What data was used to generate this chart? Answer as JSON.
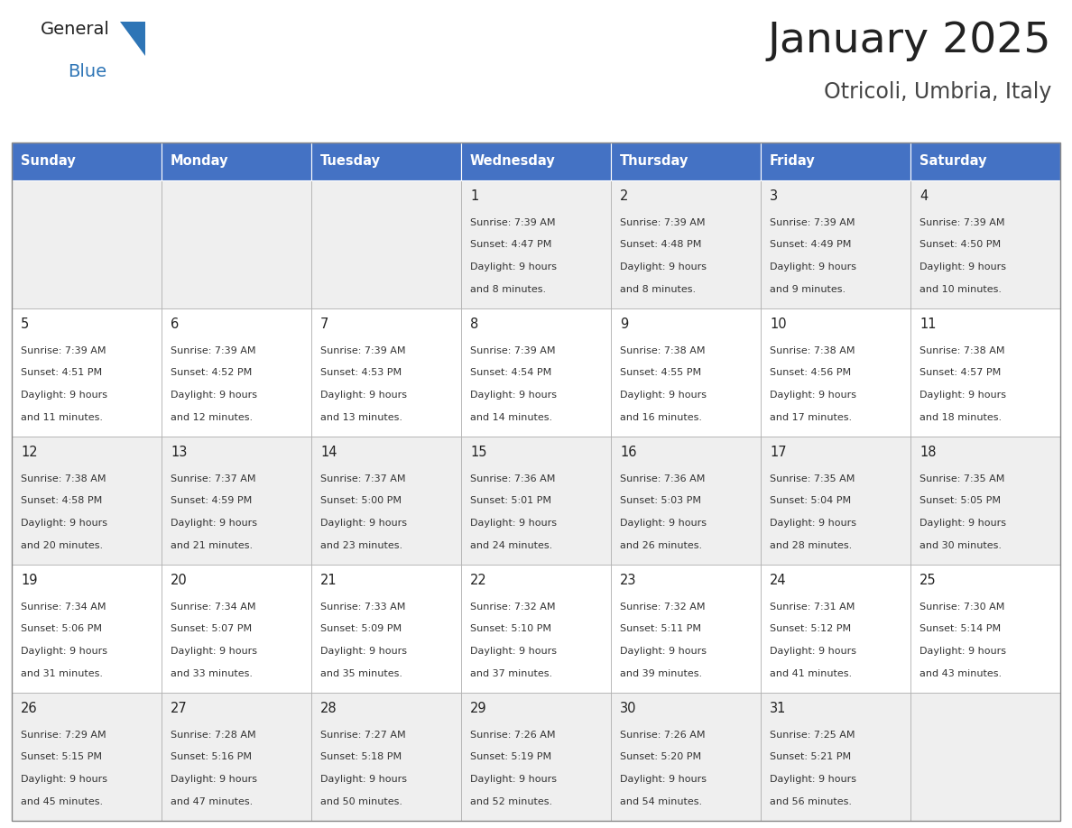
{
  "title": "January 2025",
  "subtitle": "Otricoli, Umbria, Italy",
  "days_of_week": [
    "Sunday",
    "Monday",
    "Tuesday",
    "Wednesday",
    "Thursday",
    "Friday",
    "Saturday"
  ],
  "header_bg": "#4472C4",
  "header_text": "#FFFFFF",
  "cell_bg_light": "#EFEFEF",
  "cell_bg_white": "#FFFFFF",
  "cell_border": "#AAAAAA",
  "day_number_color": "#222222",
  "text_color": "#333333",
  "title_color": "#222222",
  "subtitle_color": "#444444",
  "logo_general_color": "#222222",
  "logo_blue_color": "#2E75B6",
  "weeks": [
    {
      "days": [
        {
          "day": null,
          "sunrise": null,
          "sunset": null,
          "daylight_line1": null,
          "daylight_line2": null
        },
        {
          "day": null,
          "sunrise": null,
          "sunset": null,
          "daylight_line1": null,
          "daylight_line2": null
        },
        {
          "day": null,
          "sunrise": null,
          "sunset": null,
          "daylight_line1": null,
          "daylight_line2": null
        },
        {
          "day": "1",
          "sunrise": "Sunrise: 7:39 AM",
          "sunset": "Sunset: 4:47 PM",
          "daylight_line1": "Daylight: 9 hours",
          "daylight_line2": "and 8 minutes."
        },
        {
          "day": "2",
          "sunrise": "Sunrise: 7:39 AM",
          "sunset": "Sunset: 4:48 PM",
          "daylight_line1": "Daylight: 9 hours",
          "daylight_line2": "and 8 minutes."
        },
        {
          "day": "3",
          "sunrise": "Sunrise: 7:39 AM",
          "sunset": "Sunset: 4:49 PM",
          "daylight_line1": "Daylight: 9 hours",
          "daylight_line2": "and 9 minutes."
        },
        {
          "day": "4",
          "sunrise": "Sunrise: 7:39 AM",
          "sunset": "Sunset: 4:50 PM",
          "daylight_line1": "Daylight: 9 hours",
          "daylight_line2": "and 10 minutes."
        }
      ]
    },
    {
      "days": [
        {
          "day": "5",
          "sunrise": "Sunrise: 7:39 AM",
          "sunset": "Sunset: 4:51 PM",
          "daylight_line1": "Daylight: 9 hours",
          "daylight_line2": "and 11 minutes."
        },
        {
          "day": "6",
          "sunrise": "Sunrise: 7:39 AM",
          "sunset": "Sunset: 4:52 PM",
          "daylight_line1": "Daylight: 9 hours",
          "daylight_line2": "and 12 minutes."
        },
        {
          "day": "7",
          "sunrise": "Sunrise: 7:39 AM",
          "sunset": "Sunset: 4:53 PM",
          "daylight_line1": "Daylight: 9 hours",
          "daylight_line2": "and 13 minutes."
        },
        {
          "day": "8",
          "sunrise": "Sunrise: 7:39 AM",
          "sunset": "Sunset: 4:54 PM",
          "daylight_line1": "Daylight: 9 hours",
          "daylight_line2": "and 14 minutes."
        },
        {
          "day": "9",
          "sunrise": "Sunrise: 7:38 AM",
          "sunset": "Sunset: 4:55 PM",
          "daylight_line1": "Daylight: 9 hours",
          "daylight_line2": "and 16 minutes."
        },
        {
          "day": "10",
          "sunrise": "Sunrise: 7:38 AM",
          "sunset": "Sunset: 4:56 PM",
          "daylight_line1": "Daylight: 9 hours",
          "daylight_line2": "and 17 minutes."
        },
        {
          "day": "11",
          "sunrise": "Sunrise: 7:38 AM",
          "sunset": "Sunset: 4:57 PM",
          "daylight_line1": "Daylight: 9 hours",
          "daylight_line2": "and 18 minutes."
        }
      ]
    },
    {
      "days": [
        {
          "day": "12",
          "sunrise": "Sunrise: 7:38 AM",
          "sunset": "Sunset: 4:58 PM",
          "daylight_line1": "Daylight: 9 hours",
          "daylight_line2": "and 20 minutes."
        },
        {
          "day": "13",
          "sunrise": "Sunrise: 7:37 AM",
          "sunset": "Sunset: 4:59 PM",
          "daylight_line1": "Daylight: 9 hours",
          "daylight_line2": "and 21 minutes."
        },
        {
          "day": "14",
          "sunrise": "Sunrise: 7:37 AM",
          "sunset": "Sunset: 5:00 PM",
          "daylight_line1": "Daylight: 9 hours",
          "daylight_line2": "and 23 minutes."
        },
        {
          "day": "15",
          "sunrise": "Sunrise: 7:36 AM",
          "sunset": "Sunset: 5:01 PM",
          "daylight_line1": "Daylight: 9 hours",
          "daylight_line2": "and 24 minutes."
        },
        {
          "day": "16",
          "sunrise": "Sunrise: 7:36 AM",
          "sunset": "Sunset: 5:03 PM",
          "daylight_line1": "Daylight: 9 hours",
          "daylight_line2": "and 26 minutes."
        },
        {
          "day": "17",
          "sunrise": "Sunrise: 7:35 AM",
          "sunset": "Sunset: 5:04 PM",
          "daylight_line1": "Daylight: 9 hours",
          "daylight_line2": "and 28 minutes."
        },
        {
          "day": "18",
          "sunrise": "Sunrise: 7:35 AM",
          "sunset": "Sunset: 5:05 PM",
          "daylight_line1": "Daylight: 9 hours",
          "daylight_line2": "and 30 minutes."
        }
      ]
    },
    {
      "days": [
        {
          "day": "19",
          "sunrise": "Sunrise: 7:34 AM",
          "sunset": "Sunset: 5:06 PM",
          "daylight_line1": "Daylight: 9 hours",
          "daylight_line2": "and 31 minutes."
        },
        {
          "day": "20",
          "sunrise": "Sunrise: 7:34 AM",
          "sunset": "Sunset: 5:07 PM",
          "daylight_line1": "Daylight: 9 hours",
          "daylight_line2": "and 33 minutes."
        },
        {
          "day": "21",
          "sunrise": "Sunrise: 7:33 AM",
          "sunset": "Sunset: 5:09 PM",
          "daylight_line1": "Daylight: 9 hours",
          "daylight_line2": "and 35 minutes."
        },
        {
          "day": "22",
          "sunrise": "Sunrise: 7:32 AM",
          "sunset": "Sunset: 5:10 PM",
          "daylight_line1": "Daylight: 9 hours",
          "daylight_line2": "and 37 minutes."
        },
        {
          "day": "23",
          "sunrise": "Sunrise: 7:32 AM",
          "sunset": "Sunset: 5:11 PM",
          "daylight_line1": "Daylight: 9 hours",
          "daylight_line2": "and 39 minutes."
        },
        {
          "day": "24",
          "sunrise": "Sunrise: 7:31 AM",
          "sunset": "Sunset: 5:12 PM",
          "daylight_line1": "Daylight: 9 hours",
          "daylight_line2": "and 41 minutes."
        },
        {
          "day": "25",
          "sunrise": "Sunrise: 7:30 AM",
          "sunset": "Sunset: 5:14 PM",
          "daylight_line1": "Daylight: 9 hours",
          "daylight_line2": "and 43 minutes."
        }
      ]
    },
    {
      "days": [
        {
          "day": "26",
          "sunrise": "Sunrise: 7:29 AM",
          "sunset": "Sunset: 5:15 PM",
          "daylight_line1": "Daylight: 9 hours",
          "daylight_line2": "and 45 minutes."
        },
        {
          "day": "27",
          "sunrise": "Sunrise: 7:28 AM",
          "sunset": "Sunset: 5:16 PM",
          "daylight_line1": "Daylight: 9 hours",
          "daylight_line2": "and 47 minutes."
        },
        {
          "day": "28",
          "sunrise": "Sunrise: 7:27 AM",
          "sunset": "Sunset: 5:18 PM",
          "daylight_line1": "Daylight: 9 hours",
          "daylight_line2": "and 50 minutes."
        },
        {
          "day": "29",
          "sunrise": "Sunrise: 7:26 AM",
          "sunset": "Sunset: 5:19 PM",
          "daylight_line1": "Daylight: 9 hours",
          "daylight_line2": "and 52 minutes."
        },
        {
          "day": "30",
          "sunrise": "Sunrise: 7:26 AM",
          "sunset": "Sunset: 5:20 PM",
          "daylight_line1": "Daylight: 9 hours",
          "daylight_line2": "and 54 minutes."
        },
        {
          "day": "31",
          "sunrise": "Sunrise: 7:25 AM",
          "sunset": "Sunset: 5:21 PM",
          "daylight_line1": "Daylight: 9 hours",
          "daylight_line2": "and 56 minutes."
        },
        {
          "day": null,
          "sunrise": null,
          "sunset": null,
          "daylight_line1": null,
          "daylight_line2": null
        }
      ]
    }
  ]
}
